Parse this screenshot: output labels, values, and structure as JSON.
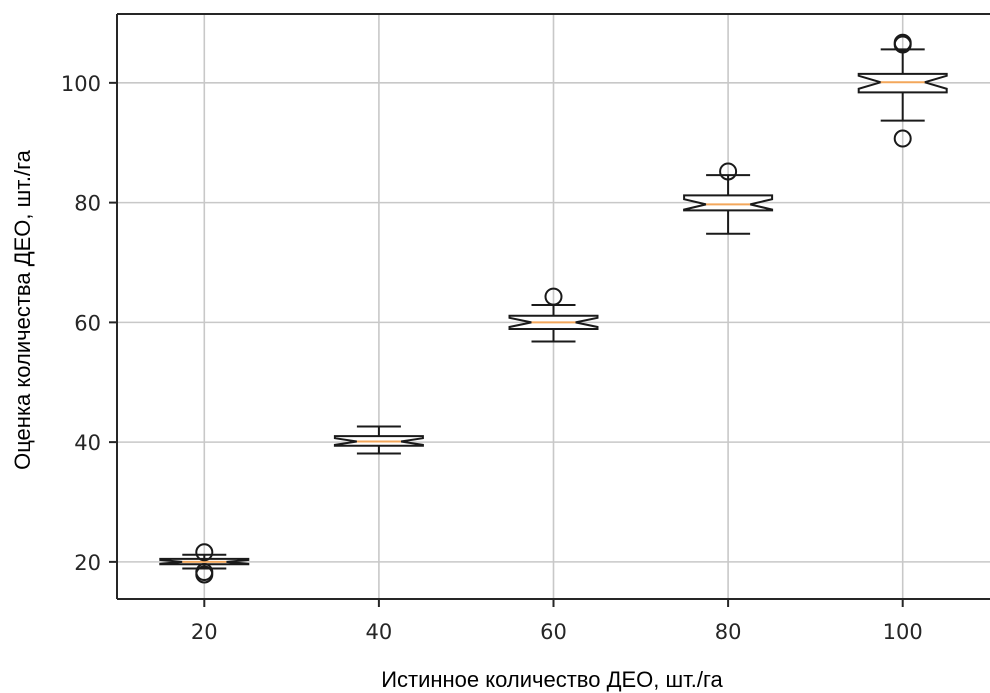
{
  "chart_data": {
    "type": "box",
    "xlabel": "Истинное количество ДЕО, шт./га",
    "ylabel": "Оценка количества ДЕО, шт./га",
    "categories": [
      20,
      40,
      60,
      80,
      100
    ],
    "x_tick_labels": [
      "20",
      "40",
      "60",
      "80",
      "100"
    ],
    "y_tick_labels": [
      "20",
      "40",
      "60",
      "80",
      "100"
    ],
    "y_ticks": [
      20,
      40,
      60,
      80,
      100
    ],
    "xlim": [
      10,
      110
    ],
    "ylim": [
      13.8,
      111.5
    ],
    "grid": true,
    "notched": true,
    "boxes": [
      {
        "x": 20,
        "whisker_low": 18.9,
        "q1": 19.6,
        "median": 20.0,
        "q3": 20.5,
        "whisker_high": 21.2,
        "outliers": [
          21.6,
          18.3,
          17.9
        ]
      },
      {
        "x": 40,
        "whisker_low": 38.1,
        "q1": 39.4,
        "median": 40.1,
        "q3": 41.0,
        "whisker_high": 42.6,
        "outliers": []
      },
      {
        "x": 60,
        "whisker_low": 56.8,
        "q1": 58.9,
        "median": 60.0,
        "q3": 61.1,
        "whisker_high": 62.9,
        "outliers": [
          64.3
        ]
      },
      {
        "x": 80,
        "whisker_low": 74.8,
        "q1": 78.7,
        "median": 79.7,
        "q3": 81.2,
        "whisker_high": 84.6,
        "outliers": [
          85.2
        ]
      },
      {
        "x": 100,
        "whisker_low": 93.7,
        "q1": 98.4,
        "median": 100.1,
        "q3": 101.5,
        "whisker_high": 105.6,
        "outliers": [
          106.7,
          106.4,
          90.7
        ]
      }
    ],
    "colors": {
      "box": "#1a1a1a",
      "median": "#f3a75b",
      "grid": "#c8c8c8",
      "axes": "#262626"
    }
  }
}
